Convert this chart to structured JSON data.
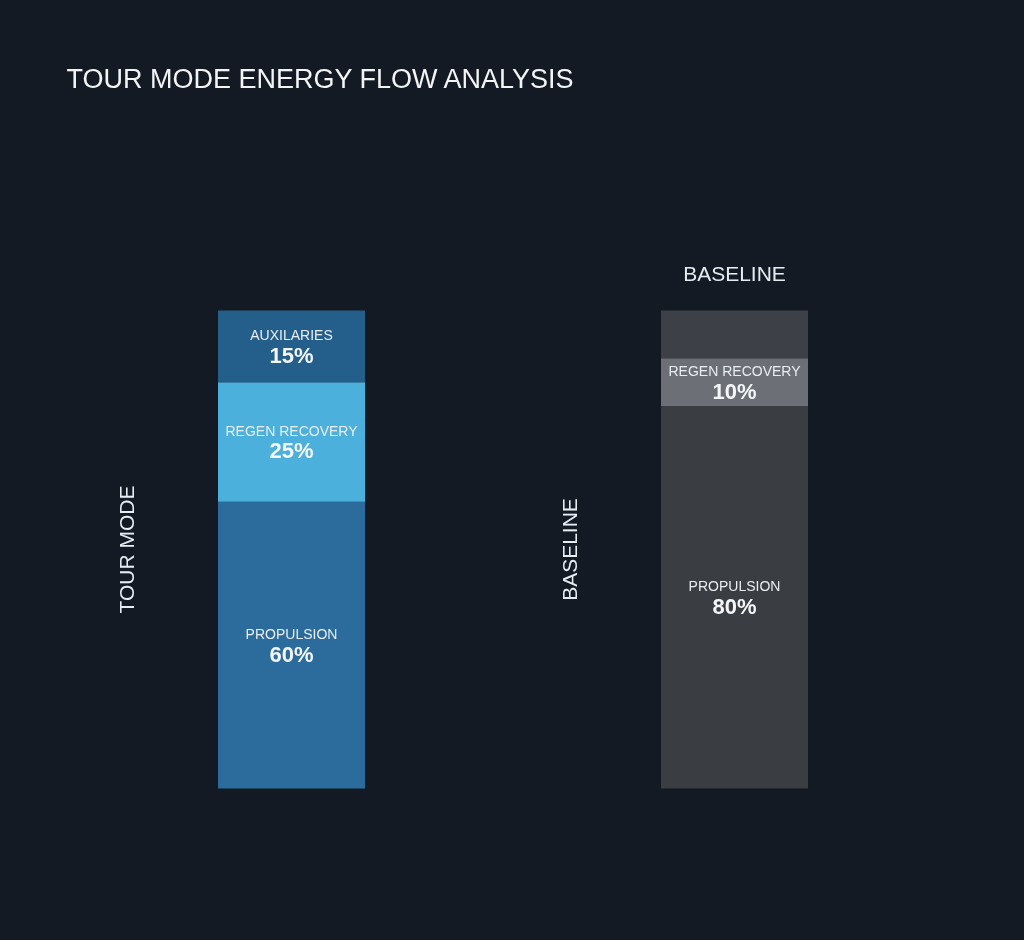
{
  "chart_data": {
    "type": "bar",
    "stacked": true,
    "title": "TOUR MODE ENERGY FLOW ANALYSIS",
    "categories": [
      "TOUR MODE",
      "BASELINE"
    ],
    "series": [
      {
        "name": "PROPULSION",
        "colors": [
          "#2b6c9c",
          "#3a3d42"
        ],
        "values": [
          60,
          80
        ],
        "value_labels": [
          "60%",
          "80%"
        ]
      },
      {
        "name": "REGEN RECOVERY",
        "colors": [
          "#4cb0dc",
          "#6c7076"
        ],
        "values": [
          25,
          10
        ],
        "value_labels": [
          "25%",
          "10%"
        ]
      },
      {
        "name": "AUXILARIES",
        "colors": [
          "#245f8c",
          "#3d4147"
        ],
        "values": [
          15,
          10
        ],
        "value_labels": [
          "15%",
          null
        ]
      }
    ],
    "annotations": [
      "BASELINE"
    ]
  }
}
